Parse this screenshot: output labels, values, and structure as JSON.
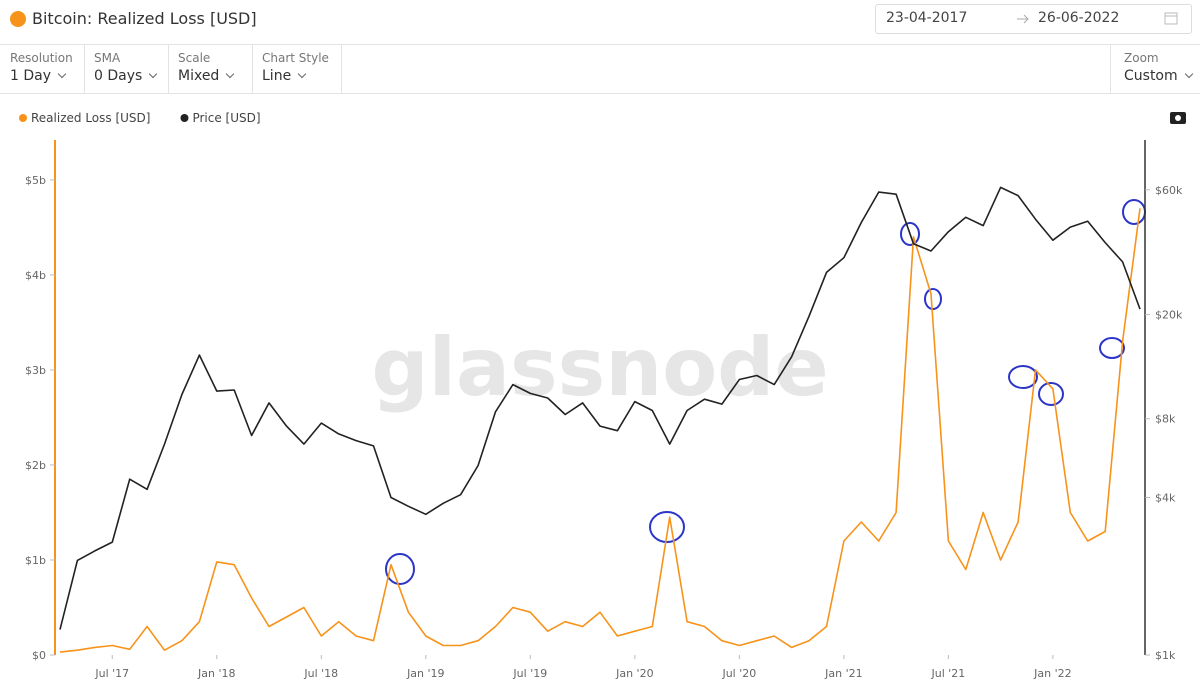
{
  "header": {
    "title": "Bitcoin: Realized Loss [USD]",
    "date_from": "23-04-2017",
    "date_to": "26-06-2022"
  },
  "toolbar": [
    {
      "label": "Resolution",
      "value": "1 Day"
    },
    {
      "label": "SMA",
      "value": "0 Days"
    },
    {
      "label": "Scale",
      "value": "Mixed"
    },
    {
      "label": "Chart Style",
      "value": "Line"
    },
    {
      "label": "Zoom",
      "value": "Custom"
    }
  ],
  "chart_data": {
    "type": "line",
    "watermark": "glassnode",
    "x": [
      "2017-04",
      "2017-05",
      "2017-06",
      "2017-07",
      "2017-08",
      "2017-09",
      "2017-10",
      "2017-11",
      "2017-12",
      "2018-01",
      "2018-02",
      "2018-03",
      "2018-04",
      "2018-05",
      "2018-06",
      "2018-07",
      "2018-08",
      "2018-09",
      "2018-10",
      "2018-11",
      "2018-12",
      "2019-01",
      "2019-02",
      "2019-03",
      "2019-04",
      "2019-05",
      "2019-06",
      "2019-07",
      "2019-08",
      "2019-09",
      "2019-10",
      "2019-11",
      "2019-12",
      "2020-01",
      "2020-02",
      "2020-03",
      "2020-04",
      "2020-05",
      "2020-06",
      "2020-07",
      "2020-08",
      "2020-09",
      "2020-10",
      "2020-11",
      "2020-12",
      "2021-01",
      "2021-02",
      "2021-03",
      "2021-04",
      "2021-05",
      "2021-06",
      "2021-07",
      "2021-08",
      "2021-09",
      "2021-10",
      "2021-11",
      "2021-12",
      "2022-01",
      "2022-02",
      "2022-03",
      "2022-04",
      "2022-05",
      "2022-06"
    ],
    "xlim": [
      "2017-04",
      "2022-06"
    ],
    "xticks": [
      {
        "value": "2017-07",
        "label": "Jul '17"
      },
      {
        "value": "2018-01",
        "label": "Jan '18"
      },
      {
        "value": "2018-07",
        "label": "Jul '18"
      },
      {
        "value": "2019-01",
        "label": "Jan '19"
      },
      {
        "value": "2019-07",
        "label": "Jul '19"
      },
      {
        "value": "2020-01",
        "label": "Jan '20"
      },
      {
        "value": "2020-07",
        "label": "Jul '20"
      },
      {
        "value": "2021-01",
        "label": "Jan '21"
      },
      {
        "value": "2021-07",
        "label": "Jul '21"
      },
      {
        "value": "2022-01",
        "label": "Jan '22"
      }
    ],
    "ylim": [
      0,
      5420000000
    ],
    "yticks": [
      {
        "value": 0,
        "label": "$0"
      },
      {
        "value": 1000000000,
        "label": "$1b"
      },
      {
        "value": 2000000000,
        "label": "$2b"
      },
      {
        "value": 3000000000,
        "label": "$3b"
      },
      {
        "value": 4000000000,
        "label": "$4b"
      },
      {
        "value": 5000000000,
        "label": "$5b"
      }
    ],
    "y2lim": [
      1000,
      93000
    ],
    "y2scale": "log",
    "y2ticks": [
      {
        "value": 1000,
        "label": "$1k"
      },
      {
        "value": 4000,
        "label": "$4k"
      },
      {
        "value": 8000,
        "label": "$8k"
      },
      {
        "value": 20000,
        "label": "$20k"
      },
      {
        "value": 60000,
        "label": "$60k"
      }
    ],
    "series": [
      {
        "name": "Realized Loss [USD]",
        "color": "#f7931a",
        "axis": "y",
        "values": [
          30000000,
          50000000,
          80000000,
          100000000,
          60000000,
          300000000,
          50000000,
          150000000,
          350000000,
          980000000,
          950000000,
          600000000,
          300000000,
          400000000,
          500000000,
          200000000,
          350000000,
          200000000,
          150000000,
          950000000,
          450000000,
          200000000,
          100000000,
          100000000,
          150000000,
          300000000,
          500000000,
          450000000,
          250000000,
          350000000,
          300000000,
          450000000,
          200000000,
          250000000,
          300000000,
          1450000000,
          350000000,
          300000000,
          150000000,
          100000000,
          150000000,
          200000000,
          80000000,
          150000000,
          300000000,
          1200000000,
          1400000000,
          1200000000,
          1500000000,
          4400000000,
          3800000000,
          1200000000,
          900000000,
          1500000000,
          1000000000,
          1400000000,
          3000000000,
          2800000000,
          1500000000,
          1200000000,
          1300000000,
          3300000000,
          4700000000
        ]
      },
      {
        "name": "Price [USD]",
        "color": "#222222",
        "axis": "y2",
        "values": [
          1250,
          2300,
          2500,
          2700,
          4700,
          4300,
          6400,
          9900,
          14000,
          10200,
          10300,
          6900,
          9200,
          7500,
          6400,
          7700,
          7000,
          6600,
          6300,
          4000,
          3700,
          3450,
          3800,
          4100,
          5300,
          8500,
          10800,
          10000,
          9600,
          8300,
          9200,
          7500,
          7200,
          9300,
          8600,
          6400,
          8600,
          9500,
          9100,
          11300,
          11700,
          10800,
          13800,
          19700,
          29000,
          33000,
          45000,
          58800,
          57700,
          37300,
          35000,
          41500,
          47100,
          43800,
          61300,
          57000,
          46300,
          38500,
          43200,
          45500,
          37700,
          31800,
          21000
        ]
      }
    ]
  }
}
